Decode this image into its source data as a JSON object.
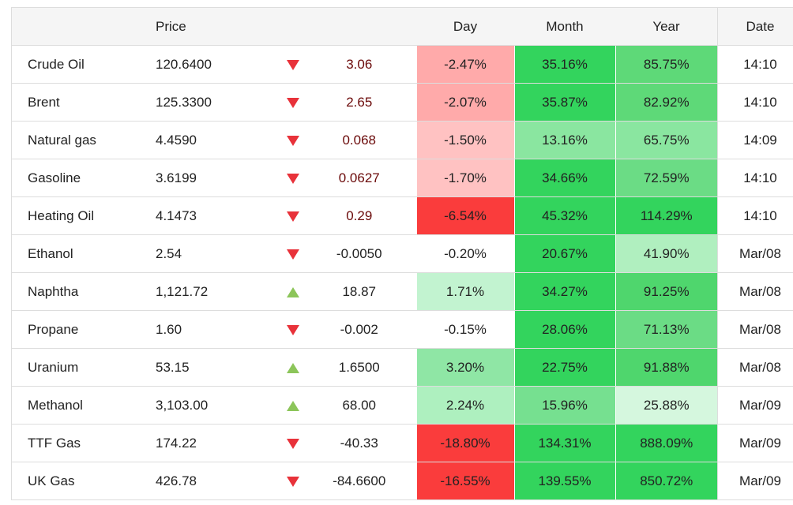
{
  "columns": {
    "name": "",
    "price": "Price",
    "arrow": "",
    "change": "",
    "day": "Day",
    "month": "Month",
    "year": "Year",
    "date": "Date"
  },
  "colors": {
    "day_neg_strong": "#fa3c3c",
    "day_neg_medium": "#ffaaaa",
    "day_neg_light": "#ffc2c2",
    "day_pos_light": "#c2f3d0",
    "day_pos_medium": "#8fe6a5",
    "day_pos_soft": "#aef0bf",
    "month_strong": "#33d45d",
    "month_medium": "#8ae6a0",
    "month_soft": "#76e090",
    "year_strong": "#33d45d",
    "year_medium": "#5ed978",
    "year_soft": "#8ae6a0",
    "year_light": "#b0efbf",
    "year_pale": "#d5f7de",
    "arrow_down": "#e8323a",
    "arrow_up": "#8cc55a"
  },
  "rows": [
    {
      "name": "Crude Oil",
      "price": "120.6400",
      "direction": "down",
      "arrow_icon": "arrow-down-icon",
      "change": "3.06",
      "day": "-2.47%",
      "day_color": "#ffaaaa",
      "month": "35.16%",
      "month_color": "#33d45d",
      "year": "85.75%",
      "year_color": "#5ed978",
      "date": "14:10"
    },
    {
      "name": "Brent",
      "price": "125.3300",
      "direction": "down",
      "arrow_icon": "arrow-down-icon",
      "change": "2.65",
      "day": "-2.07%",
      "day_color": "#ffaaaa",
      "month": "35.87%",
      "month_color": "#33d45d",
      "year": "82.92%",
      "year_color": "#5ed978",
      "date": "14:10"
    },
    {
      "name": "Natural gas",
      "price": "4.4590",
      "direction": "down",
      "arrow_icon": "arrow-down-icon",
      "change": "0.068",
      "day": "-1.50%",
      "day_color": "#ffc2c2",
      "month": "13.16%",
      "month_color": "#8ae6a0",
      "year": "65.75%",
      "year_color": "#8ae6a0",
      "date": "14:09"
    },
    {
      "name": "Gasoline",
      "price": "3.6199",
      "direction": "down",
      "arrow_icon": "arrow-down-icon",
      "change": "0.0627",
      "day": "-1.70%",
      "day_color": "#ffc2c2",
      "month": "34.66%",
      "month_color": "#33d45d",
      "year": "72.59%",
      "year_color": "#6bdc85",
      "date": "14:10"
    },
    {
      "name": "Heating Oil",
      "price": "4.1473",
      "direction": "down",
      "arrow_icon": "arrow-down-icon",
      "change": "0.29",
      "day": "-6.54%",
      "day_color": "#fa3c3c",
      "month": "45.32%",
      "month_color": "#33d45d",
      "year": "114.29%",
      "year_color": "#33d45d",
      "date": "14:10"
    },
    {
      "name": "Ethanol",
      "price": "2.54",
      "direction": "down",
      "arrow_icon": "arrow-down-icon",
      "change": "-0.0050",
      "day": "-0.20%",
      "day_color": "#ffffff",
      "month": "20.67%",
      "month_color": "#33d45d",
      "year": "41.90%",
      "year_color": "#b0efbf",
      "date": "Mar/08"
    },
    {
      "name": "Naphtha",
      "price": "1,121.72",
      "direction": "up",
      "arrow_icon": "arrow-up-icon",
      "change": "18.87",
      "day": "1.71%",
      "day_color": "#c2f3d0",
      "month": "34.27%",
      "month_color": "#33d45d",
      "year": "91.25%",
      "year_color": "#4fd66d",
      "date": "Mar/08"
    },
    {
      "name": "Propane",
      "price": "1.60",
      "direction": "down",
      "arrow_icon": "arrow-down-icon",
      "change": "-0.002",
      "day": "-0.15%",
      "day_color": "#ffffff",
      "month": "28.06%",
      "month_color": "#33d45d",
      "year": "71.13%",
      "year_color": "#6bdc85",
      "date": "Mar/08"
    },
    {
      "name": "Uranium",
      "price": "53.15",
      "direction": "up",
      "arrow_icon": "arrow-up-icon",
      "change": "1.6500",
      "day": "3.20%",
      "day_color": "#8fe6a5",
      "month": "22.75%",
      "month_color": "#33d45d",
      "year": "91.88%",
      "year_color": "#4fd66d",
      "date": "Mar/08"
    },
    {
      "name": "Methanol",
      "price": "3,103.00",
      "direction": "up",
      "arrow_icon": "arrow-up-icon",
      "change": "68.00",
      "day": "2.24%",
      "day_color": "#aef0bf",
      "month": "15.96%",
      "month_color": "#76e090",
      "year": "25.88%",
      "year_color": "#d5f7de",
      "date": "Mar/09"
    },
    {
      "name": "TTF Gas",
      "price": "174.22",
      "direction": "down",
      "arrow_icon": "arrow-down-icon",
      "change": "-40.33",
      "day": "-18.80%",
      "day_color": "#fa3c3c",
      "month": "134.31%",
      "month_color": "#33d45d",
      "year": "888.09%",
      "year_color": "#33d45d",
      "date": "Mar/09"
    },
    {
      "name": "UK Gas",
      "price": "426.78",
      "direction": "down",
      "arrow_icon": "arrow-down-icon",
      "change": "-84.6600",
      "day": "-16.55%",
      "day_color": "#fa3c3c",
      "month": "139.55%",
      "month_color": "#33d45d",
      "year": "850.72%",
      "year_color": "#33d45d",
      "date": "Mar/09"
    }
  ]
}
